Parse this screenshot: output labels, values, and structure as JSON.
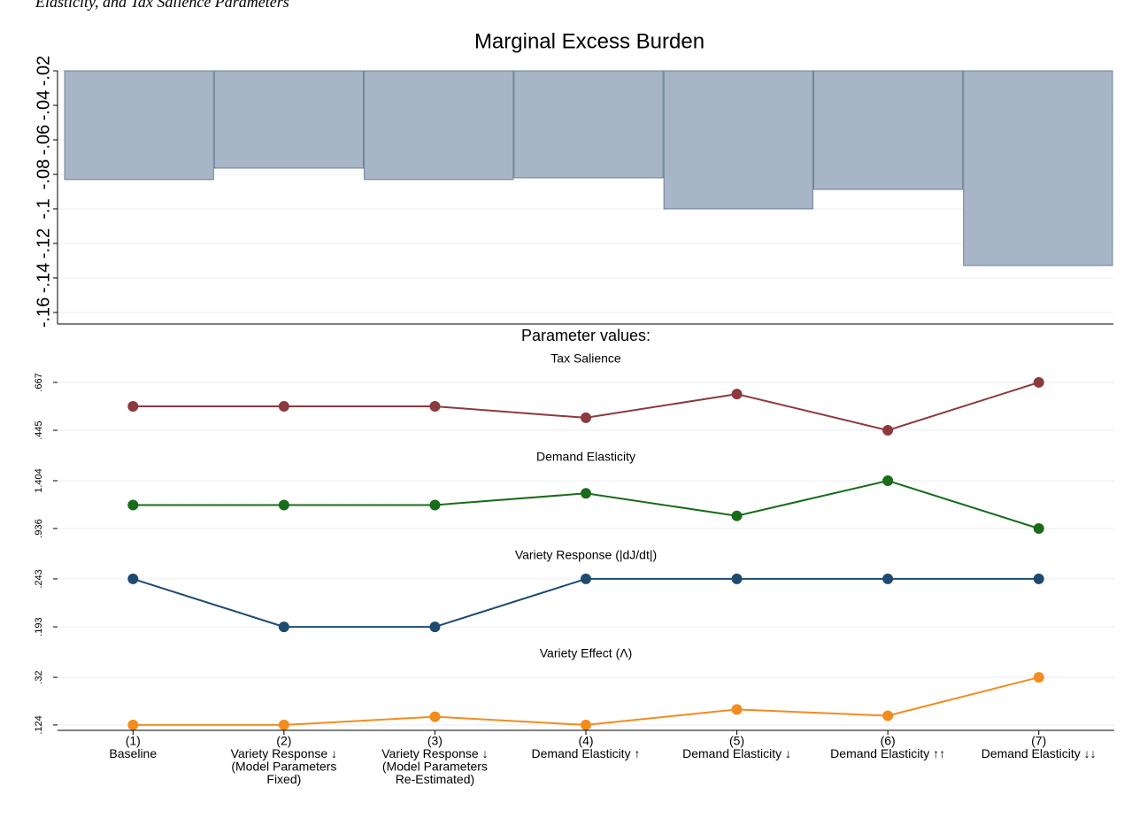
{
  "page_header": "Elasticity, and Tax Salience Parameters",
  "section_title": "Parameter values:",
  "chart_data": [
    {
      "type": "bar",
      "title": "Marginal Excess Burden",
      "values": [
        -0.083,
        -0.0764,
        -0.083,
        -0.082,
        -0.1,
        -0.0887,
        -0.1328
      ],
      "color": "#a7b5c6",
      "edge_color": "#6b8199",
      "ylim": [
        -0.1667,
        -0.02
      ],
      "yticks": [
        {
          "value": -0.16,
          "label": "-.16"
        },
        {
          "value": -0.14,
          "label": "-.14"
        },
        {
          "value": -0.12,
          "label": "-.12"
        },
        {
          "value": -0.1,
          "label": "-.1"
        },
        {
          "value": -0.08,
          "label": "-.08"
        },
        {
          "value": -0.06,
          "label": "-.06"
        },
        {
          "value": -0.04,
          "label": "-.04"
        },
        {
          "value": -0.02,
          "label": "-.02"
        }
      ],
      "grid": true
    },
    {
      "type": "line",
      "title": "Tax Salience",
      "color": "#8b3a3e",
      "values": [
        0.556,
        0.556,
        0.556,
        0.503,
        0.613,
        0.445,
        0.667
      ],
      "ylim": [
        0.396,
        0.716
      ],
      "yticks": [
        {
          "value": 0.445,
          "label": ".445"
        },
        {
          "value": 0.667,
          "label": ".667"
        }
      ],
      "grid": true
    },
    {
      "type": "line",
      "title": "Demand Elasticity",
      "color": "#1a6b1a",
      "values": [
        1.166,
        1.166,
        1.166,
        1.28,
        1.06,
        1.404,
        0.936
      ],
      "ylim": [
        0.832,
        1.508
      ],
      "yticks": [
        {
          "value": 0.936,
          "label": ".936"
        },
        1.404
      ],
      "grid": true
    },
    {
      "type": "line",
      "title": "Variety Response (|dJ/dt|)",
      "color": "#1f4a70",
      "values": [
        0.243,
        0.193,
        0.193,
        0.243,
        0.243,
        0.243,
        0.243
      ],
      "ylim": [
        0.182,
        0.254
      ],
      "yticks": [
        {
          "value": 0.193,
          "label": ".193"
        },
        {
          "value": 0.243,
          "label": ".243"
        }
      ],
      "grid": true
    },
    {
      "type": "line",
      "title": "Variety Effect (Λ)",
      "color": "#f28c1e",
      "values": [
        0.124,
        0.124,
        0.158,
        0.124,
        0.188,
        0.162,
        0.32
      ],
      "ylim": [
        0.08,
        0.364
      ],
      "yticks": [
        {
          "value": 0.124,
          "label": ".124"
        },
        {
          "value": 0.32,
          "label": ".32"
        }
      ],
      "grid": true,
      "categories": [
        [
          "(1)",
          "Baseline"
        ],
        [
          "(2)",
          "Variety Response ↓",
          "(Model Parameters",
          "Fixed)"
        ],
        [
          "(3)",
          "Variety Response ↓",
          "(Model Parameters",
          "Re-Estimated)"
        ],
        [
          "(4)",
          "Demand Elasticity ↑"
        ],
        [
          "(5)",
          "Demand Elasticity ↓"
        ],
        [
          "(6)",
          "Demand Elasticity ↑↑"
        ],
        [
          "(7)",
          "Demand Elasticity ↓↓"
        ]
      ]
    }
  ]
}
